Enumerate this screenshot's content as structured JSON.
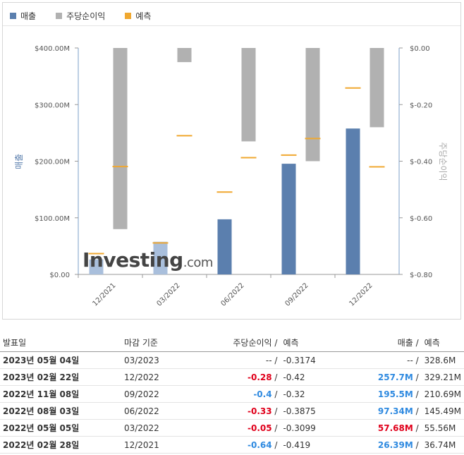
{
  "legend": [
    {
      "label": "매출",
      "color": "#5b7fae"
    },
    {
      "label": "주당순이익",
      "color": "#b1b1b1"
    },
    {
      "label": "예측",
      "color": "#f0a830"
    }
  ],
  "chart_data": {
    "type": "bar",
    "categories": [
      "12/2021",
      "03/2022",
      "06/2022",
      "09/2022",
      "12/2022"
    ],
    "ylabel_left": "매출",
    "ylabel_right": "주당순이익",
    "left_ticks": [
      "$0.00",
      "$100.00M",
      "$200.00M",
      "$300.00M",
      "$400.00M"
    ],
    "right_ticks": [
      "$0.00",
      "$-0.20",
      "$-0.40",
      "$-0.60",
      "$-0.80"
    ],
    "ylim_left": [
      0,
      400
    ],
    "ylim_right": [
      -0.8,
      0
    ],
    "series": [
      {
        "name": "매출",
        "unit": "M",
        "values": [
          26.39,
          57.68,
          97.34,
          195.5,
          257.7
        ],
        "forecast": [
          36.74,
          55.56,
          145.49,
          210.69,
          329.21
        ]
      },
      {
        "name": "주당순이익",
        "values": [
          -0.64,
          -0.05,
          -0.33,
          -0.4,
          -0.28
        ],
        "forecast": [
          -0.419,
          -0.3099,
          -0.3875,
          -0.32,
          -0.42
        ]
      }
    ],
    "watermark": {
      "brand": "Investing",
      "suffix": ".com"
    }
  },
  "table": {
    "headers": [
      "발표일",
      "마감 기준",
      "주당순이익",
      "예측",
      "매출",
      "예측"
    ],
    "rows": [
      {
        "date": "2023년 05월 04일",
        "period": "03/2023",
        "eps": "--",
        "eps_fc": "-0.3174",
        "rev": "--",
        "rev_fc": "328.6M",
        "eps_cls": "",
        "rev_cls": ""
      },
      {
        "date": "2023년 02월 22일",
        "period": "12/2022",
        "eps": "-0.28",
        "eps_fc": "-0.42",
        "rev": "257.7M",
        "rev_fc": "329.21M",
        "eps_cls": "neg",
        "rev_cls": "pos"
      },
      {
        "date": "2022년 11월 08일",
        "period": "09/2022",
        "eps": "-0.4",
        "eps_fc": "-0.32",
        "rev": "195.5M",
        "rev_fc": "210.69M",
        "eps_cls": "pos",
        "rev_cls": "pos"
      },
      {
        "date": "2022년 08월 03일",
        "period": "06/2022",
        "eps": "-0.33",
        "eps_fc": "-0.3875",
        "rev": "97.34M",
        "rev_fc": "145.49M",
        "eps_cls": "neg",
        "rev_cls": "pos"
      },
      {
        "date": "2022년 05월 05일",
        "period": "03/2022",
        "eps": "-0.05",
        "eps_fc": "-0.3099",
        "rev": "57.68M",
        "rev_fc": "55.56M",
        "eps_cls": "neg",
        "rev_cls": "neg"
      },
      {
        "date": "2022년 02월 28일",
        "period": "12/2021",
        "eps": "-0.64",
        "eps_fc": "-0.419",
        "rev": "26.39M",
        "rev_fc": "36.74M",
        "eps_cls": "pos",
        "rev_cls": "pos"
      }
    ]
  }
}
